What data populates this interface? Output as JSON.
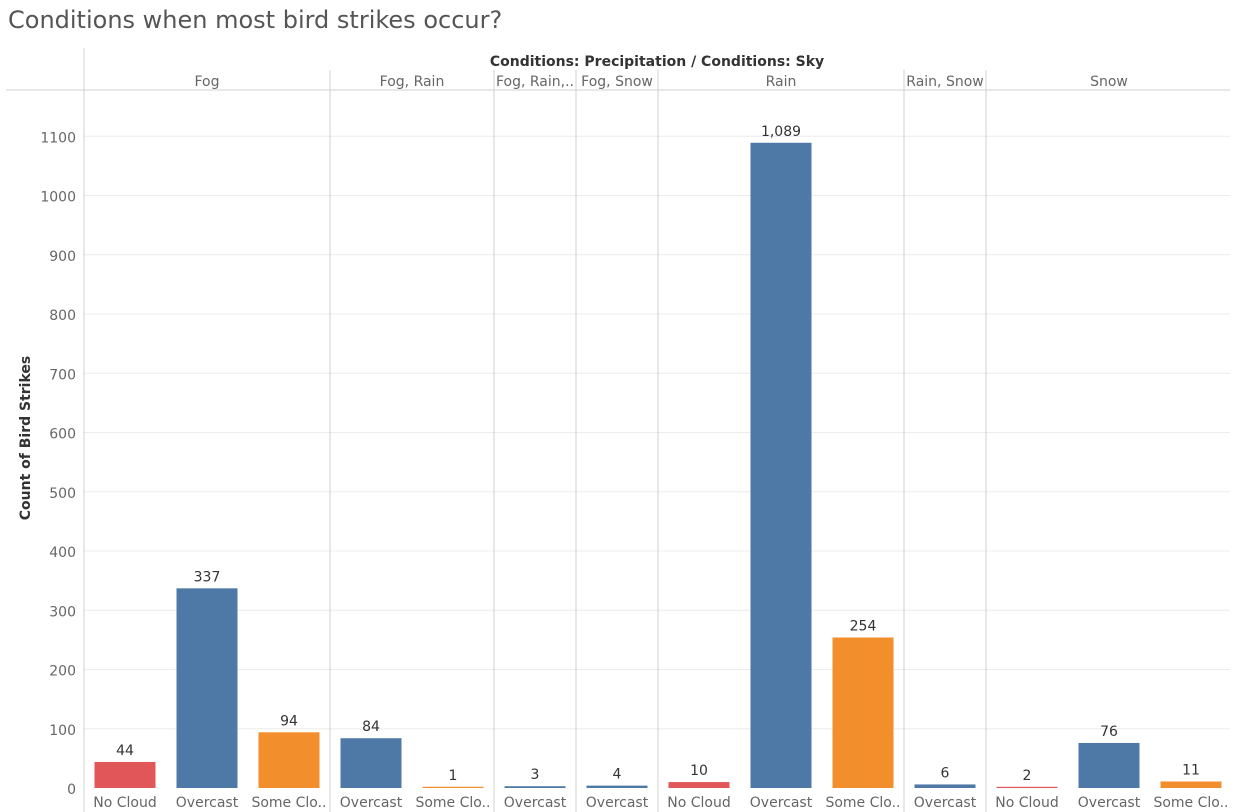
{
  "title": "Conditions when most bird strikes occur?",
  "chart_data": {
    "type": "bar",
    "header": "Conditions: Precipitation  /  Conditions: Sky",
    "ylabel": "Count of Bird Strikes",
    "ylim": [
      0,
      1150
    ],
    "yticks": [
      0,
      100,
      200,
      300,
      400,
      500,
      600,
      700,
      800,
      900,
      1000,
      1100
    ],
    "grid": true,
    "colors": {
      "No Cloud": "#e15759",
      "Overcast": "#4e79a7",
      "Some Cloud": "#f28e2b"
    },
    "groups": [
      {
        "label": "Fog",
        "bars": [
          {
            "sky": "No Cloud",
            "label": "No Cloud",
            "value": 44,
            "value_label": "44"
          },
          {
            "sky": "Overcast",
            "label": "Overcast",
            "value": 337,
            "value_label": "337"
          },
          {
            "sky": "Some Cloud",
            "label": "Some Clo..",
            "value": 94,
            "value_label": "94"
          }
        ]
      },
      {
        "label": "Fog, Rain",
        "bars": [
          {
            "sky": "Overcast",
            "label": "Overcast",
            "value": 84,
            "value_label": "84"
          },
          {
            "sky": "Some Cloud",
            "label": "Some Clo..",
            "value": 1,
            "value_label": "1"
          }
        ]
      },
      {
        "label": "Fog, Rain,..",
        "bars": [
          {
            "sky": "Overcast",
            "label": "Overcast",
            "value": 3,
            "value_label": "3"
          }
        ]
      },
      {
        "label": "Fog, Snow",
        "bars": [
          {
            "sky": "Overcast",
            "label": "Overcast",
            "value": 4,
            "value_label": "4"
          }
        ]
      },
      {
        "label": "Rain",
        "bars": [
          {
            "sky": "No Cloud",
            "label": "No Cloud",
            "value": 10,
            "value_label": "10"
          },
          {
            "sky": "Overcast",
            "label": "Overcast",
            "value": 1089,
            "value_label": "1,089"
          },
          {
            "sky": "Some Cloud",
            "label": "Some Clo..",
            "value": 254,
            "value_label": "254"
          }
        ]
      },
      {
        "label": "Rain, Snow",
        "bars": [
          {
            "sky": "Overcast",
            "label": "Overcast",
            "value": 6,
            "value_label": "6"
          }
        ]
      },
      {
        "label": "Snow",
        "bars": [
          {
            "sky": "No Cloud",
            "label": "No Cloud",
            "value": 2,
            "value_label": "2"
          },
          {
            "sky": "Overcast",
            "label": "Overcast",
            "value": 76,
            "value_label": "76"
          },
          {
            "sky": "Some Cloud",
            "label": "Some Clo..",
            "value": 11,
            "value_label": "11"
          }
        ]
      }
    ]
  }
}
